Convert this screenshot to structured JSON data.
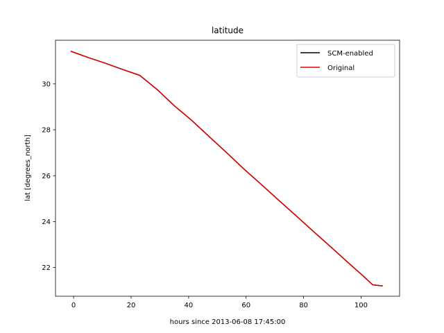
{
  "chart_data": {
    "type": "line",
    "title": "latitude",
    "xlabel": "hours since 2013-06-08 17:45:00",
    "ylabel": "lat [degrees_north]",
    "xlim": [
      -6.3,
      113.4
    ],
    "ylim": [
      20.75,
      31.9
    ],
    "xticks": [
      0,
      20,
      40,
      60,
      80,
      100
    ],
    "yticks": [
      22,
      24,
      26,
      28,
      30
    ],
    "grid": false,
    "legend_position": "top-right",
    "series": [
      {
        "name": "SCM-enabled",
        "color": "#000000",
        "x": [
          -1,
          5,
          11,
          17,
          23,
          29,
          35,
          41,
          47,
          53,
          59,
          65,
          71,
          77,
          83,
          89,
          95,
          101,
          104,
          106,
          107.5
        ],
        "y": [
          31.42,
          31.15,
          30.9,
          30.63,
          30.37,
          29.76,
          29.05,
          28.42,
          27.72,
          27.03,
          26.32,
          25.65,
          24.97,
          24.3,
          23.62,
          22.95,
          22.27,
          21.6,
          21.25,
          21.22,
          21.2
        ]
      },
      {
        "name": "Original",
        "color": "#e00000",
        "x": [
          -1,
          5,
          11,
          17,
          23,
          29,
          35,
          41,
          47,
          53,
          59,
          65,
          71,
          77,
          83,
          89,
          95,
          101,
          104,
          106,
          107.5
        ],
        "y": [
          31.42,
          31.15,
          30.9,
          30.63,
          30.37,
          29.76,
          29.05,
          28.42,
          27.72,
          27.03,
          26.32,
          25.65,
          24.97,
          24.3,
          23.62,
          22.95,
          22.27,
          21.6,
          21.25,
          21.22,
          21.2
        ]
      }
    ]
  }
}
